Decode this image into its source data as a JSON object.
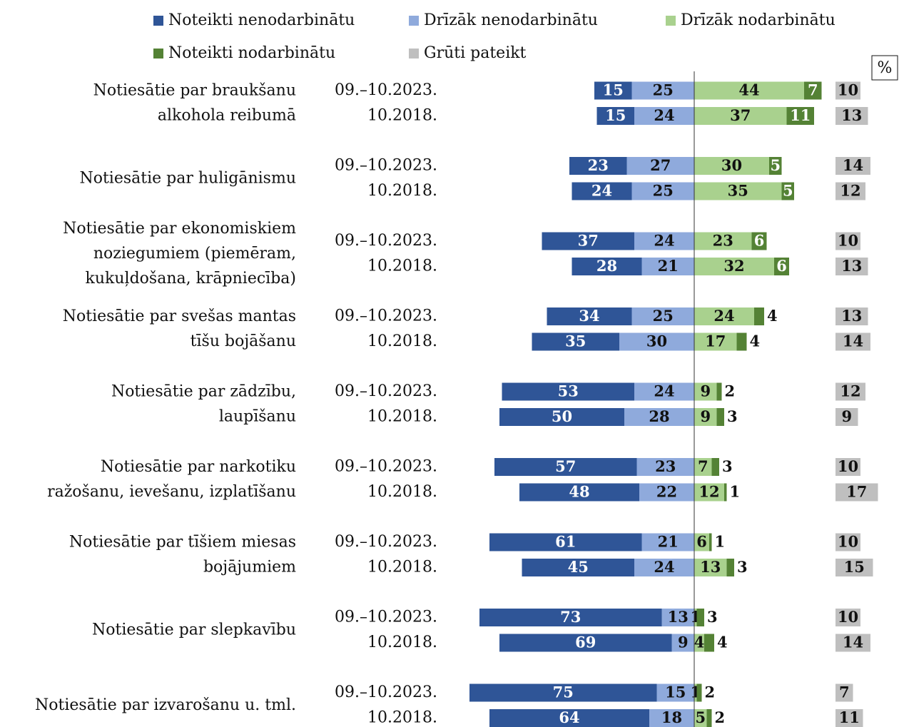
{
  "chart_data": {
    "type": "diverging_stacked_bar",
    "unit_label": "%",
    "periods": [
      "09.–10.2023.",
      "10.2018."
    ],
    "categories": [
      [
        "Notiesātie par braukšanu",
        "alkohola reibumā"
      ],
      [
        "Notiesātie par huligānismu"
      ],
      [
        "Notiesātie par ekonomiskiem",
        "noziegumiem (piemēram,",
        "kukuļdošana, krāpniecība)"
      ],
      [
        "Notiesātie par svešas mantas",
        "tīšu bojāšanu"
      ],
      [
        "Notiesātie par zādzību,",
        "laupīšanu"
      ],
      [
        "Notiesātie par narkotiku",
        "ražošanu, ievešanu, izplatīšanu"
      ],
      [
        "Notiesātie par tīšiem miesas",
        "bojājumiem"
      ],
      [
        "Notiesātie par slepkavību"
      ],
      [
        "Notiesātie par izvarošanu u. tml."
      ]
    ],
    "series": [
      {
        "name": "Noteikti nenodarbinātu",
        "color": "#2f5597",
        "side": "left",
        "values": [
          [
            15,
            15
          ],
          [
            23,
            24
          ],
          [
            37,
            28
          ],
          [
            34,
            35
          ],
          [
            53,
            50
          ],
          [
            57,
            48
          ],
          [
            61,
            45
          ],
          [
            73,
            69
          ],
          [
            75,
            64
          ]
        ]
      },
      {
        "name": "Drīzāk nenodarbinātu",
        "color": "#8faadc",
        "side": "left",
        "values": [
          [
            25,
            24
          ],
          [
            27,
            25
          ],
          [
            24,
            21
          ],
          [
            25,
            30
          ],
          [
            24,
            28
          ],
          [
            23,
            22
          ],
          [
            21,
            24
          ],
          [
            13,
            9
          ],
          [
            15,
            18
          ]
        ]
      },
      {
        "name": "Drīzāk nodarbinātu",
        "color": "#a9d18e",
        "side": "right",
        "values": [
          [
            44,
            37
          ],
          [
            30,
            35
          ],
          [
            23,
            32
          ],
          [
            24,
            17
          ],
          [
            9,
            9
          ],
          [
            7,
            12
          ],
          [
            6,
            13
          ],
          [
            1,
            4
          ],
          [
            1,
            5
          ]
        ]
      },
      {
        "name": "Noteikti nodarbinātu",
        "color": "#548235",
        "side": "right",
        "values": [
          [
            7,
            11
          ],
          [
            5,
            5
          ],
          [
            6,
            6
          ],
          [
            4,
            4
          ],
          [
            2,
            3
          ],
          [
            3,
            1
          ],
          [
            1,
            3
          ],
          [
            3,
            4
          ],
          [
            2,
            2
          ]
        ]
      },
      {
        "name": "Grūti pateikt",
        "color": "#bfbfbf",
        "side": "separate",
        "values": [
          [
            10,
            13
          ],
          [
            14,
            12
          ],
          [
            10,
            13
          ],
          [
            13,
            14
          ],
          [
            12,
            9
          ],
          [
            10,
            17
          ],
          [
            10,
            15
          ],
          [
            10,
            14
          ],
          [
            7,
            11
          ]
        ]
      }
    ]
  }
}
